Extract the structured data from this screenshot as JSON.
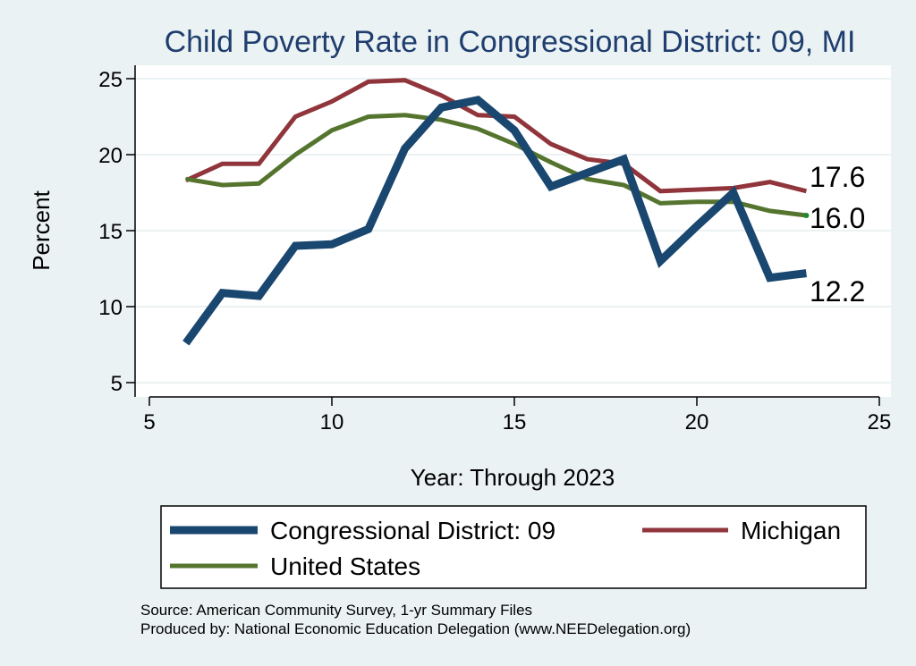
{
  "chart_data": {
    "type": "line",
    "title": "Child Poverty Rate in Congressional District:  09, MI",
    "xlabel": "Year: Through 2023",
    "ylabel": "Percent",
    "xlim": [
      5,
      25
    ],
    "ylim": [
      4.5,
      26
    ],
    "x_ticks": [
      "5",
      "10",
      "15",
      "20",
      "25"
    ],
    "y_ticks": [
      "5",
      "10",
      "15",
      "20",
      "25"
    ],
    "grid": true,
    "x": [
      6,
      7,
      8,
      9,
      10,
      11,
      12,
      13,
      14,
      15,
      16,
      17,
      18,
      19,
      20,
      21,
      22,
      23
    ],
    "series": [
      {
        "name": "Congressional District:  09",
        "color": "#1a476f",
        "values": [
          7.6,
          10.9,
          10.7,
          14.0,
          14.1,
          15.1,
          20.4,
          23.1,
          23.6,
          21.6,
          17.9,
          18.8,
          19.7,
          13.0,
          15.3,
          17.5,
          11.9,
          12.2
        ],
        "end_label": "12.2"
      },
      {
        "name": "Michigan",
        "color": "#90353b",
        "values": [
          18.3,
          19.4,
          19.4,
          22.5,
          23.5,
          24.8,
          24.9,
          23.9,
          22.6,
          22.5,
          20.7,
          19.7,
          19.4,
          17.6,
          17.7,
          17.8,
          18.2,
          17.6
        ],
        "end_label": "17.6"
      },
      {
        "name": "United States",
        "color": "#55752f",
        "values": [
          18.4,
          18.0,
          18.1,
          20.0,
          21.6,
          22.5,
          22.6,
          22.3,
          21.7,
          20.7,
          19.5,
          18.4,
          18.0,
          16.8,
          16.9,
          16.9,
          16.3,
          16.0
        ],
        "end_label": "16.0"
      }
    ],
    "legend": {
      "placement": "bottom",
      "entries": [
        "Congressional District:  09",
        "Michigan",
        "United States"
      ]
    },
    "notes": [
      "Source: American Community Survey, 1-yr Summary Files",
      "Produced by: National Economic Education Delegation (www.NEEDelegation.org)"
    ]
  }
}
